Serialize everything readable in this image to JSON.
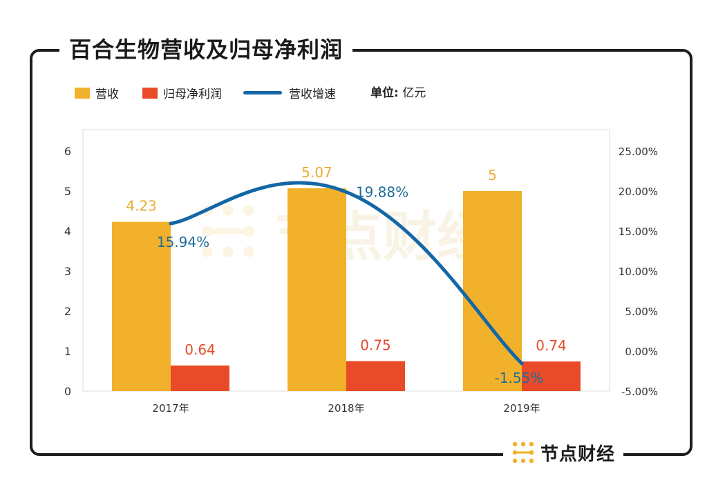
{
  "title": "百合生物营收及归母净利润",
  "unit": {
    "label": "单位:",
    "value": "亿元"
  },
  "brand": {
    "name": "节点财经",
    "icon": "node-logo-icon"
  },
  "watermark": {
    "text": "节点财经"
  },
  "colors": {
    "revenue": "#F2B12B",
    "net_profit": "#E94B28",
    "growth": "#1467A6",
    "growth_label": "#1E6C98",
    "revenue_label": "#E8AE2F",
    "profit_label": "#E44A28"
  },
  "chart_data": {
    "type": "bar",
    "categories": [
      "2017年",
      "2018年",
      "2019年"
    ],
    "series": [
      {
        "name": "营收",
        "type": "bar",
        "axis": "left",
        "values": [
          4.23,
          5.07,
          5
        ],
        "labels": [
          "4.23",
          "5.07",
          "5"
        ]
      },
      {
        "name": "归母净利润",
        "type": "bar",
        "axis": "left",
        "values": [
          0.64,
          0.75,
          0.74
        ],
        "labels": [
          "0.64",
          "0.75",
          "0.74"
        ]
      },
      {
        "name": "营收增速",
        "type": "line",
        "axis": "right",
        "values": [
          15.94,
          19.88,
          -1.55
        ],
        "labels": [
          "15.94%",
          "19.88%",
          "-1.55%"
        ]
      }
    ],
    "y_left": {
      "ticks": [
        "0",
        "1",
        "2",
        "3",
        "4",
        "5",
        "6"
      ],
      "range": [
        0,
        6
      ]
    },
    "y_right": {
      "ticks": [
        "-5.00%",
        "0.00%",
        "5.00%",
        "10.00%",
        "15.00%",
        "20.00%",
        "25.00%"
      ],
      "range": [
        -5,
        25
      ]
    },
    "legend_position": "top-left",
    "grid": false
  }
}
